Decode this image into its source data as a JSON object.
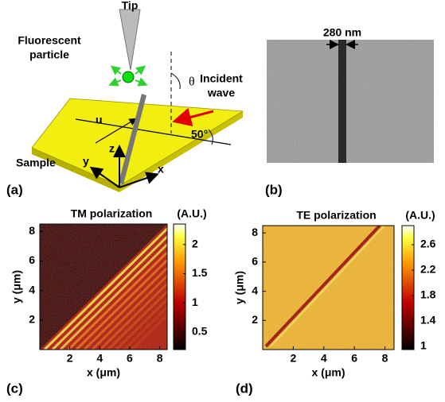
{
  "panel_a": {
    "label": "(a)",
    "tip": "Tip",
    "particle": [
      "Fluorescent",
      "particle"
    ],
    "incident": [
      "Incident",
      "wave"
    ],
    "theta": "θ",
    "u": "u",
    "angle": "50°",
    "x": "x",
    "y": "y",
    "z": "z",
    "sample": "Sample"
  },
  "panel_b": {
    "label": "(b)",
    "width_label": "280 nm"
  },
  "maps": [
    {
      "label": "(c)",
      "title": "TM polarization",
      "unit": "(A.U.)",
      "xlabel": "x (μm)",
      "ylabel": "y (μm)",
      "xlim": [
        0,
        8.5
      ],
      "ylim": [
        0,
        8.5
      ],
      "xticks": [
        2,
        4,
        6,
        8
      ],
      "yticks": [
        2,
        4,
        6,
        8
      ],
      "clim": [
        0.2,
        2.35
      ],
      "cticks": [
        0.5,
        1,
        1.5,
        2
      ]
    },
    {
      "label": "(d)",
      "title": "TE polarization",
      "unit": "(A.U.)",
      "xlabel": "x (μm)",
      "ylabel": "y (μm)",
      "xlim": [
        0,
        8.6
      ],
      "ylim": [
        0,
        8.5
      ],
      "xticks": [
        2,
        4,
        6,
        8
      ],
      "yticks": [
        2,
        4,
        6,
        8
      ],
      "clim": [
        0.95,
        2.9
      ],
      "cticks": [
        1,
        1.4,
        1.8,
        2.2,
        2.6
      ]
    }
  ]
}
